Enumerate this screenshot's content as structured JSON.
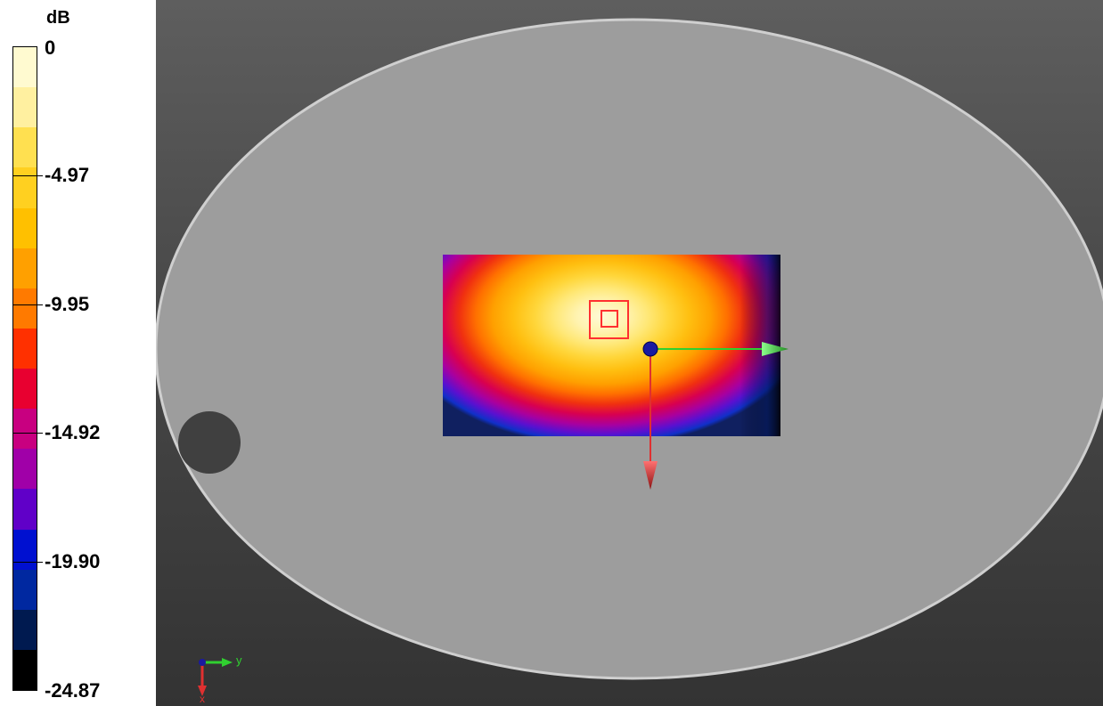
{
  "legend": {
    "unit": "dB",
    "ticks": [
      {
        "label": "0",
        "value": 0
      },
      {
        "label": "-4.97",
        "value": -4.97
      },
      {
        "label": "-9.95",
        "value": -9.95
      },
      {
        "label": "-14.92",
        "value": -14.92
      },
      {
        "label": "-19.90",
        "value": -19.9
      },
      {
        "label": "-24.87",
        "value": -24.87
      }
    ],
    "range": [
      -24.87,
      0
    ],
    "bands_top_to_bottom": [
      "#fffad0",
      "#fff0a0",
      "#ffe050",
      "#ffd020",
      "#ffc000",
      "#ffa000",
      "#ff7a00",
      "#ff3000",
      "#e80030",
      "#c80080",
      "#a000a8",
      "#6000c8",
      "#0010d0",
      "#0028a0",
      "#001a50",
      "#000000"
    ]
  },
  "viewport": {
    "axes_triad": {
      "y_label": "y",
      "x_label": "x"
    }
  },
  "colors": {
    "phantom_fill": "#9d9d9d",
    "phantom_edge": "#c8c8c8",
    "hole": "#404040",
    "marker_red": "#ff3030",
    "arrow_green": "#30d030",
    "arrow_red": "#e03030",
    "origin_blue": "#1a1aa0"
  }
}
